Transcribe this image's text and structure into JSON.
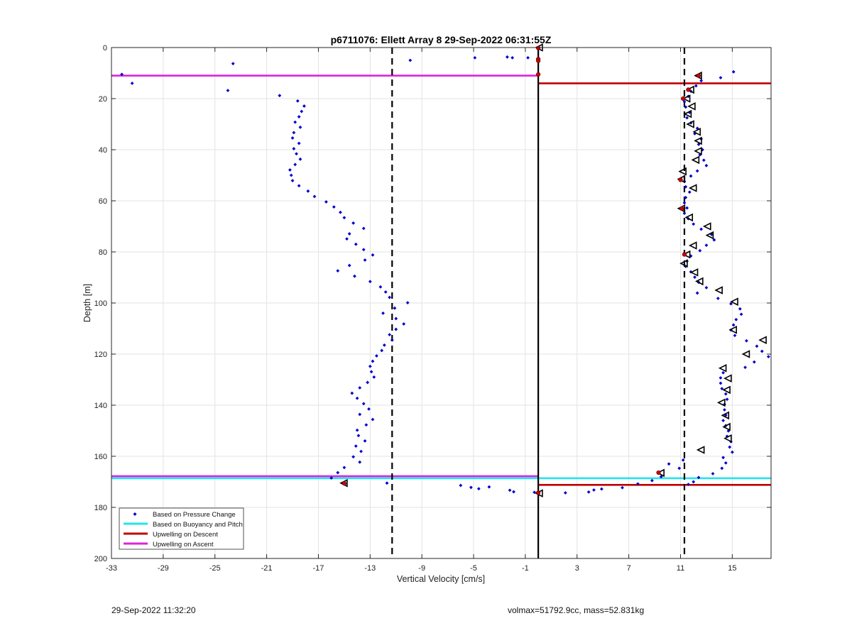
{
  "chart_data": {
    "type": "scatter",
    "title": "p6711076: Ellett Array 8 29-Sep-2022 06:31:55Z",
    "xlabel": "Vertical Velocity [cm/s]",
    "ylabel": "Depth [m]",
    "xlim": [
      -33,
      18
    ],
    "ylim": [
      0,
      200
    ],
    "y_reversed": true,
    "grid": true,
    "xticks": [
      -33,
      -29,
      -25,
      -21,
      -17,
      -13,
      -9,
      -5,
      -1,
      3,
      7,
      11,
      15
    ],
    "xtick_labels": [
      "-33",
      "-29",
      "-25",
      "-21",
      "-17",
      "-13",
      "-9",
      "-5",
      "-1",
      "3",
      "7",
      "11",
      "15"
    ],
    "yticks": [
      0,
      20,
      40,
      60,
      80,
      100,
      120,
      140,
      160,
      180,
      200
    ],
    "ytick_labels": [
      "0",
      "20",
      "40",
      "60",
      "80",
      "100",
      "120",
      "140",
      "160",
      "180",
      "200"
    ],
    "legend_position": "bottom-left",
    "legend": [
      {
        "label": "Based on Pressure Change",
        "color": "#0000cc",
        "style": "marker"
      },
      {
        "label": "Based on Buoyancy and Pitch",
        "color": "#22e4ee",
        "style": "line"
      },
      {
        "label": "Upwelling on Descent",
        "color": "#c00000",
        "style": "line"
      },
      {
        "label": "Upwelling on Ascent",
        "color": "#dd22dd",
        "style": "line"
      }
    ],
    "vertical_lines": [
      {
        "x": -11.3,
        "style": "dashed",
        "color": "#000000"
      },
      {
        "x": 0,
        "style": "solid",
        "color": "#000000"
      },
      {
        "x": 11.3,
        "style": "dashed",
        "color": "#000000"
      }
    ],
    "horizontal_segments": [
      {
        "series": "Upwelling on Ascent",
        "y": 11,
        "x_from": -33,
        "x_to": 0,
        "color": "#dd22dd"
      },
      {
        "series": "Upwelling on Descent",
        "y": 14,
        "x_from": 0,
        "x_to": 18,
        "color": "#c00000"
      },
      {
        "series": "Based on Buoyancy and Pitch",
        "y": 168.6,
        "x_from": -33,
        "x_to": 0,
        "color": "#22e4ee"
      },
      {
        "series": "Upwelling on Ascent",
        "y": 167.8,
        "x_from": -33,
        "x_to": 0,
        "color": "#dd22dd"
      },
      {
        "series": "Based on Buoyancy and Pitch",
        "y": 168.6,
        "x_from": 0,
        "x_to": 18,
        "color": "#22e4ee"
      },
      {
        "series": "Upwelling on Descent",
        "y": 171.2,
        "x_from": 0,
        "x_to": 18,
        "color": "#c00000"
      }
    ],
    "series": [
      {
        "name": "Based on Pressure Change",
        "color": "#0000cc",
        "points": [
          [
            -32.2,
            10.5
          ],
          [
            -31.4,
            14.0
          ],
          [
            -23.6,
            6.3
          ],
          [
            -24.0,
            16.8
          ],
          [
            -20.0,
            18.8
          ],
          [
            -18.6,
            20.9
          ],
          [
            -18.1,
            22.9
          ],
          [
            -18.3,
            25.0
          ],
          [
            -18.5,
            27.1
          ],
          [
            -18.8,
            29.2
          ],
          [
            -18.4,
            31.2
          ],
          [
            -18.9,
            33.3
          ],
          [
            -19.0,
            35.4
          ],
          [
            -18.5,
            37.5
          ],
          [
            -18.9,
            39.6
          ],
          [
            -18.7,
            41.6
          ],
          [
            -18.4,
            43.7
          ],
          [
            -18.8,
            45.8
          ],
          [
            -19.2,
            47.9
          ],
          [
            -19.1,
            50.0
          ],
          [
            -19.0,
            52.1
          ],
          [
            -18.5,
            54.1
          ],
          [
            -17.8,
            56.2
          ],
          [
            -17.3,
            58.3
          ],
          [
            -16.4,
            60.4
          ],
          [
            -15.8,
            62.4
          ],
          [
            -15.3,
            64.5
          ],
          [
            -15.0,
            66.6
          ],
          [
            -14.3,
            68.7
          ],
          [
            -13.5,
            70.8
          ],
          [
            -14.6,
            72.9
          ],
          [
            -14.8,
            74.9
          ],
          [
            -14.1,
            77.0
          ],
          [
            -13.5,
            79.1
          ],
          [
            -12.8,
            81.2
          ],
          [
            -13.4,
            83.2
          ],
          [
            -14.6,
            85.3
          ],
          [
            -15.5,
            87.4
          ],
          [
            -14.2,
            89.5
          ],
          [
            -13.0,
            91.6
          ],
          [
            -12.2,
            93.7
          ],
          [
            -11.8,
            95.7
          ],
          [
            -11.5,
            97.8
          ],
          [
            -10.1,
            99.9
          ],
          [
            -11.1,
            102.0
          ],
          [
            -12.0,
            104.0
          ],
          [
            -11.0,
            106.1
          ],
          [
            -10.4,
            108.2
          ],
          [
            -11.0,
            110.3
          ],
          [
            -11.5,
            112.4
          ],
          [
            -11.3,
            114.5
          ],
          [
            -11.9,
            116.5
          ],
          [
            -12.1,
            118.6
          ],
          [
            -12.5,
            120.7
          ],
          [
            -12.8,
            122.8
          ],
          [
            -13.0,
            124.8
          ],
          [
            -12.9,
            126.9
          ],
          [
            -12.7,
            129.0
          ],
          [
            -13.2,
            131.1
          ],
          [
            -13.8,
            133.2
          ],
          [
            -14.4,
            135.3
          ],
          [
            -14.0,
            137.3
          ],
          [
            -13.5,
            139.4
          ],
          [
            -13.1,
            141.5
          ],
          [
            -13.8,
            143.6
          ],
          [
            -12.8,
            145.6
          ],
          [
            -13.3,
            147.7
          ],
          [
            -14.0,
            149.8
          ],
          [
            -13.9,
            151.9
          ],
          [
            -13.4,
            154.0
          ],
          [
            -14.1,
            156.0
          ],
          [
            -13.7,
            158.1
          ],
          [
            -14.3,
            160.2
          ],
          [
            -13.8,
            162.3
          ],
          [
            -15.0,
            164.4
          ],
          [
            -15.5,
            166.4
          ],
          [
            -16.0,
            168.5
          ],
          [
            -11.7,
            170.5
          ],
          [
            -9.9,
            5.0
          ],
          [
            -4.9,
            4.0
          ],
          [
            -2.4,
            3.7
          ],
          [
            -2.0,
            4.0
          ],
          [
            -0.8,
            4.0
          ],
          [
            -6.0,
            171.4
          ],
          [
            -5.2,
            172.2
          ],
          [
            -4.6,
            172.7
          ],
          [
            -3.8,
            172.0
          ],
          [
            -2.2,
            173.3
          ],
          [
            -1.9,
            173.9
          ],
          [
            -0.3,
            174.1
          ],
          [
            2.1,
            174.3
          ],
          [
            3.9,
            174.0
          ],
          [
            4.3,
            173.2
          ],
          [
            4.9,
            172.8
          ],
          [
            6.5,
            172.3
          ],
          [
            7.7,
            170.8
          ],
          [
            8.8,
            169.5
          ],
          [
            9.5,
            168.0
          ],
          [
            10.1,
            163.0
          ],
          [
            10.9,
            164.7
          ],
          [
            11.2,
            161.5
          ],
          [
            15.1,
            9.5
          ],
          [
            14.1,
            11.8
          ],
          [
            12.6,
            13.0
          ],
          [
            12.2,
            15.0
          ],
          [
            11.8,
            17.1
          ],
          [
            11.6,
            19.1
          ],
          [
            11.3,
            21.2
          ],
          [
            11.4,
            23.3
          ],
          [
            11.7,
            25.4
          ],
          [
            11.5,
            27.5
          ],
          [
            11.8,
            29.5
          ],
          [
            12.3,
            31.6
          ],
          [
            12.1,
            33.7
          ],
          [
            12.6,
            35.8
          ],
          [
            12.4,
            37.9
          ],
          [
            12.7,
            40.0
          ],
          [
            12.5,
            42.0
          ],
          [
            12.8,
            44.1
          ],
          [
            13.0,
            46.2
          ],
          [
            12.3,
            48.3
          ],
          [
            11.8,
            50.3
          ],
          [
            11.3,
            52.4
          ],
          [
            11.4,
            54.5
          ],
          [
            11.7,
            56.6
          ],
          [
            11.4,
            58.7
          ],
          [
            11.3,
            60.8
          ],
          [
            11.5,
            62.8
          ],
          [
            11.3,
            64.9
          ],
          [
            11.6,
            67.0
          ],
          [
            12.0,
            69.1
          ],
          [
            12.6,
            71.1
          ],
          [
            13.4,
            73.2
          ],
          [
            13.6,
            75.3
          ],
          [
            13.0,
            77.4
          ],
          [
            12.5,
            79.5
          ],
          [
            11.8,
            81.6
          ],
          [
            11.5,
            83.6
          ],
          [
            11.4,
            85.7
          ],
          [
            11.8,
            87.8
          ],
          [
            12.1,
            89.9
          ],
          [
            12.4,
            91.9
          ],
          [
            13.0,
            94.0
          ],
          [
            12.3,
            96.1
          ],
          [
            13.9,
            98.2
          ],
          [
            14.9,
            100.3
          ],
          [
            15.6,
            102.3
          ],
          [
            15.7,
            104.4
          ],
          [
            15.3,
            106.5
          ],
          [
            15.1,
            108.6
          ],
          [
            14.9,
            110.6
          ],
          [
            15.2,
            112.7
          ],
          [
            16.1,
            114.8
          ],
          [
            16.9,
            116.9
          ],
          [
            17.3,
            118.9
          ],
          [
            17.8,
            121.0
          ],
          [
            16.7,
            123.1
          ],
          [
            16.0,
            125.2
          ],
          [
            14.3,
            127.3
          ],
          [
            14.1,
            129.3
          ],
          [
            14.1,
            131.4
          ],
          [
            14.2,
            133.5
          ],
          [
            14.5,
            135.6
          ],
          [
            14.6,
            137.7
          ],
          [
            14.4,
            139.7
          ],
          [
            14.4,
            141.8
          ],
          [
            14.5,
            143.9
          ],
          [
            14.3,
            146.0
          ],
          [
            14.5,
            148.0
          ],
          [
            14.7,
            150.1
          ],
          [
            14.6,
            152.2
          ],
          [
            14.9,
            154.3
          ],
          [
            14.8,
            156.4
          ],
          [
            15.0,
            158.4
          ],
          [
            14.3,
            160.5
          ],
          [
            14.5,
            162.6
          ],
          [
            14.2,
            164.7
          ],
          [
            13.5,
            166.8
          ],
          [
            12.4,
            168.3
          ],
          [
            12.0,
            170.0
          ],
          [
            11.6,
            171.0
          ]
        ]
      },
      {
        "name": "Buoyancy/Pitch markers",
        "color": "#000000",
        "marker": "triangle-left",
        "points": [
          [
            12.4,
            11.0
          ],
          [
            11.8,
            16.5
          ],
          [
            11.5,
            20.0
          ],
          [
            11.9,
            23.0
          ],
          [
            11.6,
            26.0
          ],
          [
            11.8,
            30.0
          ],
          [
            12.3,
            33.0
          ],
          [
            12.4,
            36.5
          ],
          [
            12.4,
            40.5
          ],
          [
            12.2,
            44.0
          ],
          [
            11.2,
            48.5
          ],
          [
            11.1,
            51.5
          ],
          [
            12.0,
            55.0
          ],
          [
            11.1,
            63.0
          ],
          [
            11.7,
            66.5
          ],
          [
            13.1,
            70.0
          ],
          [
            13.3,
            73.5
          ],
          [
            12.0,
            77.5
          ],
          [
            11.5,
            81.0
          ],
          [
            11.3,
            84.5
          ],
          [
            12.1,
            88.0
          ],
          [
            12.5,
            91.5
          ],
          [
            14.0,
            95.0
          ],
          [
            15.2,
            99.5
          ],
          [
            15.1,
            110.5
          ],
          [
            17.4,
            114.5
          ],
          [
            16.1,
            120.0
          ],
          [
            14.3,
            125.5
          ],
          [
            14.7,
            129.5
          ],
          [
            14.6,
            134.0
          ],
          [
            14.2,
            139.0
          ],
          [
            14.5,
            144.0
          ],
          [
            14.6,
            148.5
          ],
          [
            14.7,
            153.0
          ],
          [
            12.6,
            157.5
          ],
          [
            9.5,
            166.5
          ],
          [
            -15.0,
            170.5
          ],
          [
            0.1,
            174.5
          ],
          [
            0.1,
            0.0
          ]
        ]
      },
      {
        "name": "Descent/Ascent marker points",
        "color": "#cc0000",
        "marker": "circle",
        "points": [
          [
            0.0,
            0.2
          ],
          [
            0.0,
            4.5
          ],
          [
            0.0,
            5.2
          ],
          [
            0.0,
            10.5
          ],
          [
            12.4,
            11.0
          ],
          [
            11.6,
            16.5
          ],
          [
            11.2,
            20.0
          ],
          [
            11.0,
            51.8
          ],
          [
            11.1,
            63.0
          ],
          [
            11.3,
            81.0
          ],
          [
            9.3,
            166.4
          ],
          [
            -15.0,
            170.6
          ],
          [
            0.0,
            174.3
          ]
        ]
      }
    ]
  },
  "footer": {
    "left": "29-Sep-2022 11:32:20",
    "right": "volmax=51792.9cc, mass=52.831kg"
  }
}
